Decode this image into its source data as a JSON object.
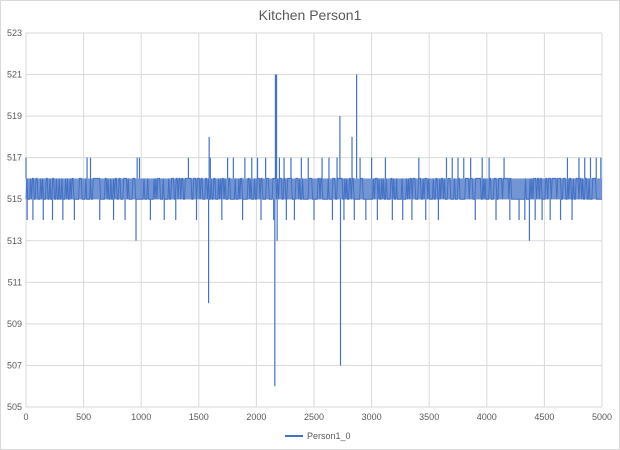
{
  "chart_data": {
    "type": "line",
    "title": "Kitchen Person1",
    "xlabel": "",
    "ylabel": "",
    "xlim": [
      0,
      5000
    ],
    "ylim": [
      505,
      523
    ],
    "x_ticks": [
      0,
      500,
      1000,
      1500,
      2000,
      2500,
      3000,
      3500,
      4000,
      4500,
      5000
    ],
    "y_ticks": [
      505,
      507,
      509,
      511,
      513,
      515,
      517,
      519,
      521,
      523
    ],
    "grid": true,
    "legend": "bottom",
    "series": [
      {
        "name": "Person1_0",
        "color": "#4472c4",
        "baseline_band": [
          515,
          516
        ],
        "spikes": [
          {
            "x": 0,
            "y": 517
          },
          {
            "x": 10,
            "y": 514
          },
          {
            "x": 60,
            "y": 514
          },
          {
            "x": 150,
            "y": 514
          },
          {
            "x": 230,
            "y": 514
          },
          {
            "x": 320,
            "y": 514
          },
          {
            "x": 420,
            "y": 514
          },
          {
            "x": 530,
            "y": 517
          },
          {
            "x": 560,
            "y": 517
          },
          {
            "x": 640,
            "y": 514
          },
          {
            "x": 760,
            "y": 514
          },
          {
            "x": 860,
            "y": 514
          },
          {
            "x": 955,
            "y": 513
          },
          {
            "x": 965,
            "y": 517
          },
          {
            "x": 985,
            "y": 517
          },
          {
            "x": 1080,
            "y": 514
          },
          {
            "x": 1200,
            "y": 514
          },
          {
            "x": 1300,
            "y": 514
          },
          {
            "x": 1410,
            "y": 517
          },
          {
            "x": 1480,
            "y": 514
          },
          {
            "x": 1585,
            "y": 510
          },
          {
            "x": 1590,
            "y": 518
          },
          {
            "x": 1600,
            "y": 517
          },
          {
            "x": 1700,
            "y": 514
          },
          {
            "x": 1750,
            "y": 517
          },
          {
            "x": 1800,
            "y": 517
          },
          {
            "x": 1880,
            "y": 514
          },
          {
            "x": 1900,
            "y": 517
          },
          {
            "x": 1960,
            "y": 517
          },
          {
            "x": 2010,
            "y": 517
          },
          {
            "x": 2040,
            "y": 514
          },
          {
            "x": 2080,
            "y": 517
          },
          {
            "x": 2150,
            "y": 514
          },
          {
            "x": 2160,
            "y": 506
          },
          {
            "x": 2165,
            "y": 521
          },
          {
            "x": 2175,
            "y": 521
          },
          {
            "x": 2180,
            "y": 513
          },
          {
            "x": 2200,
            "y": 517
          },
          {
            "x": 2240,
            "y": 517
          },
          {
            "x": 2260,
            "y": 514
          },
          {
            "x": 2300,
            "y": 517
          },
          {
            "x": 2330,
            "y": 514
          },
          {
            "x": 2390,
            "y": 517
          },
          {
            "x": 2450,
            "y": 517
          },
          {
            "x": 2500,
            "y": 514
          },
          {
            "x": 2570,
            "y": 517
          },
          {
            "x": 2630,
            "y": 517
          },
          {
            "x": 2660,
            "y": 514
          },
          {
            "x": 2700,
            "y": 517
          },
          {
            "x": 2725,
            "y": 519
          },
          {
            "x": 2730,
            "y": 507
          },
          {
            "x": 2760,
            "y": 514
          },
          {
            "x": 2830,
            "y": 518
          },
          {
            "x": 2850,
            "y": 514
          },
          {
            "x": 2870,
            "y": 521
          },
          {
            "x": 2900,
            "y": 517
          },
          {
            "x": 2950,
            "y": 514
          },
          {
            "x": 3000,
            "y": 517
          },
          {
            "x": 3050,
            "y": 514
          },
          {
            "x": 3120,
            "y": 517
          },
          {
            "x": 3180,
            "y": 514
          },
          {
            "x": 3270,
            "y": 514
          },
          {
            "x": 3350,
            "y": 514
          },
          {
            "x": 3410,
            "y": 517
          },
          {
            "x": 3470,
            "y": 514
          },
          {
            "x": 3580,
            "y": 514
          },
          {
            "x": 3650,
            "y": 517
          },
          {
            "x": 3700,
            "y": 517
          },
          {
            "x": 3750,
            "y": 517
          },
          {
            "x": 3800,
            "y": 517
          },
          {
            "x": 3860,
            "y": 517
          },
          {
            "x": 3900,
            "y": 514
          },
          {
            "x": 3960,
            "y": 517
          },
          {
            "x": 4020,
            "y": 517
          },
          {
            "x": 4080,
            "y": 514
          },
          {
            "x": 4150,
            "y": 517
          },
          {
            "x": 4200,
            "y": 514
          },
          {
            "x": 4280,
            "y": 514
          },
          {
            "x": 4330,
            "y": 514
          },
          {
            "x": 4370,
            "y": 513
          },
          {
            "x": 4420,
            "y": 514
          },
          {
            "x": 4480,
            "y": 514
          },
          {
            "x": 4550,
            "y": 514
          },
          {
            "x": 4640,
            "y": 514
          },
          {
            "x": 4700,
            "y": 517
          },
          {
            "x": 4740,
            "y": 514
          },
          {
            "x": 4800,
            "y": 517
          },
          {
            "x": 4850,
            "y": 517
          },
          {
            "x": 4900,
            "y": 517
          },
          {
            "x": 4950,
            "y": 517
          },
          {
            "x": 4990,
            "y": 517
          }
        ]
      }
    ]
  }
}
